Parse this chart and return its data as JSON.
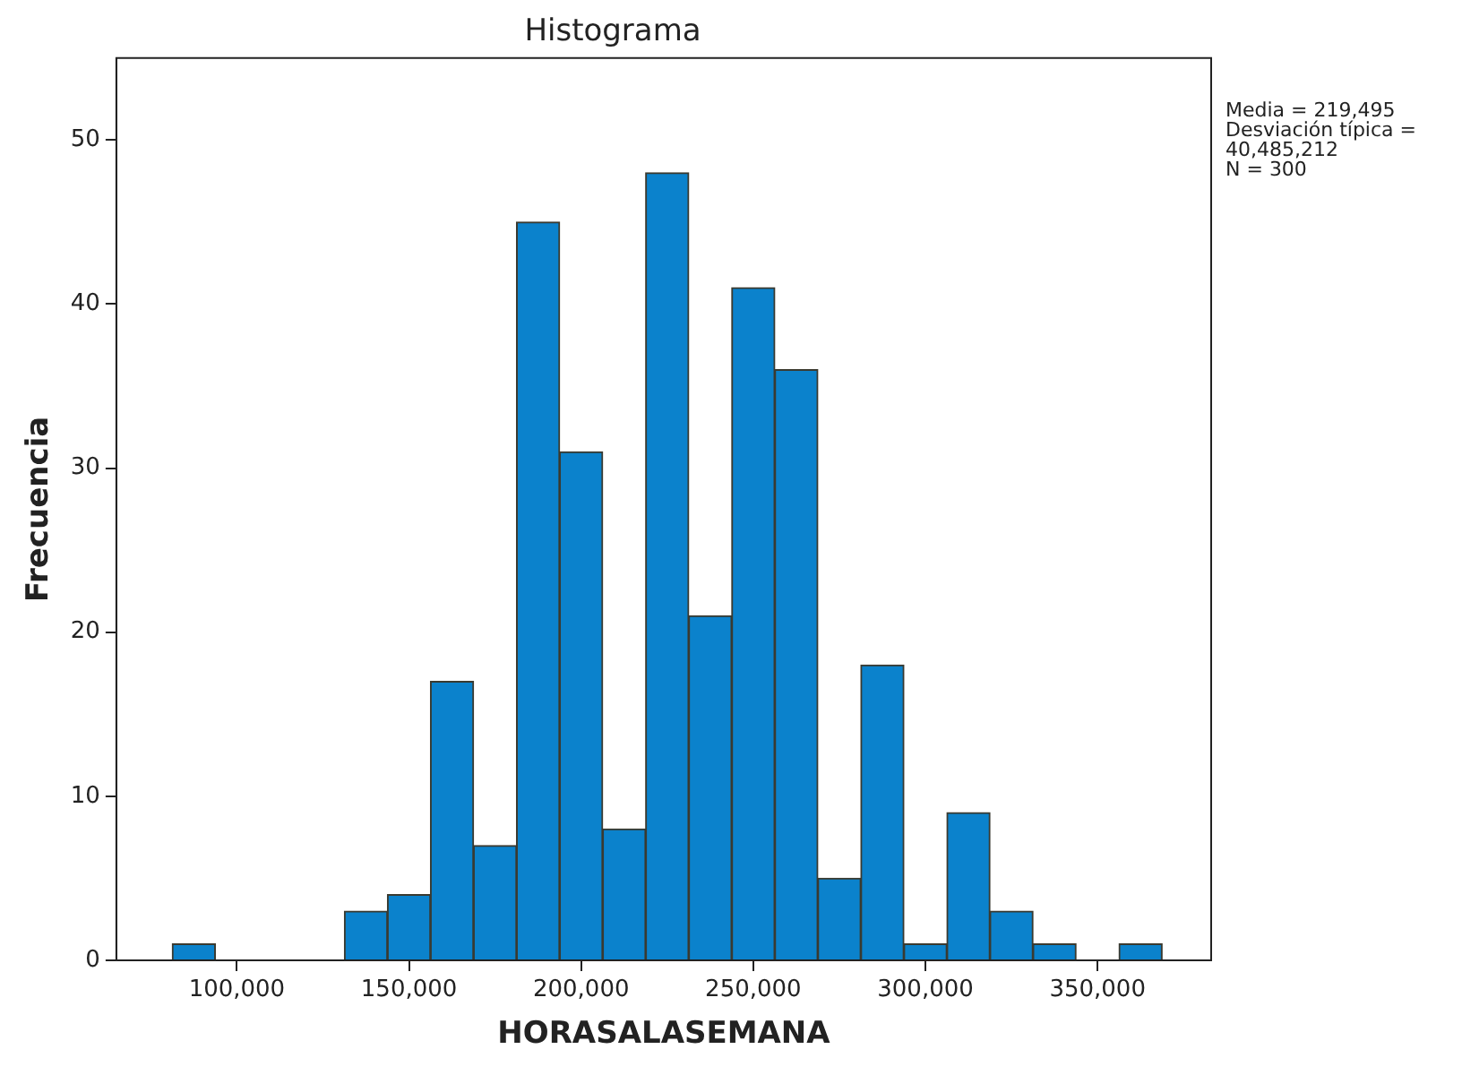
{
  "chart_data": {
    "type": "histogram",
    "title": "Histograma",
    "xlabel": "HORASALASEMANA",
    "ylabel": "Frecuencia",
    "bins": [
      81250,
      93750,
      106250,
      118750,
      131250,
      143750,
      156250,
      168750,
      181250,
      193750,
      206250,
      218750,
      231250,
      243750,
      256250,
      268750,
      281250,
      293750,
      306250,
      318750,
      331250,
      343750,
      356250,
      368750
    ],
    "values": [
      1,
      0,
      0,
      0,
      3,
      4,
      17,
      7,
      45,
      31,
      8,
      48,
      21,
      41,
      36,
      5,
      18,
      1,
      9,
      3,
      1,
      0,
      1
    ],
    "color": "#0b82cc",
    "xlim": [
      65000,
      383000
    ],
    "xticks": [
      {
        "value": 100000,
        "label": "100,000"
      },
      {
        "value": 150000,
        "label": "150,000"
      },
      {
        "value": 200000,
        "label": "200,000"
      },
      {
        "value": 250000,
        "label": "250,000"
      },
      {
        "value": 300000,
        "label": "300,000"
      },
      {
        "value": 350000,
        "label": "350,000"
      }
    ],
    "ylim": [
      0,
      55
    ],
    "yticks": [
      0,
      10,
      20,
      30,
      40,
      50
    ],
    "grid": false,
    "legend": false,
    "annotations": [
      "Media = 219,495",
      "Desviación típica = 40,485,212",
      "N = 300"
    ]
  }
}
